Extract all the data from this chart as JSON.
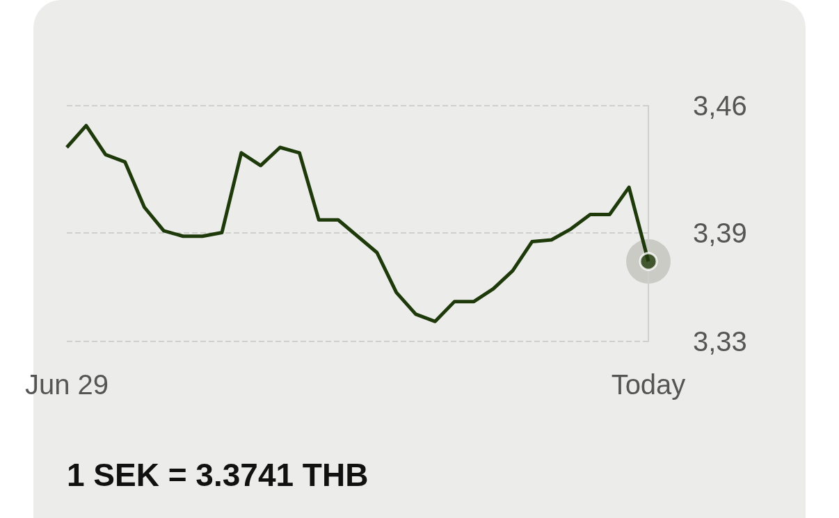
{
  "chart_data": {
    "type": "line",
    "categories": [
      "Jun 29",
      null,
      null,
      null,
      null,
      null,
      null,
      null,
      null,
      null,
      null,
      null,
      null,
      null,
      null,
      null,
      null,
      null,
      null,
      null,
      null,
      null,
      null,
      null,
      null,
      null,
      null,
      null,
      null,
      null,
      "Today"
    ],
    "series": [
      {
        "color": "#1f3a0a",
        "marker": "none",
        "values": [
          3.437,
          3.449,
          3.433,
          3.429,
          3.404,
          3.391,
          3.388,
          3.388,
          3.39,
          3.434,
          3.427,
          3.437,
          3.434,
          3.397,
          3.397,
          3.388,
          3.379,
          3.357,
          3.345,
          3.341,
          3.352,
          3.352,
          3.359,
          3.369,
          3.385,
          3.386,
          3.392,
          3.4,
          3.4,
          3.415,
          3.3741
        ]
      },
      {
        "type": "scatter",
        "marker": "circle",
        "color": "#1f3a0a",
        "x": [
          "Today"
        ],
        "values": [
          3.3741
        ]
      }
    ],
    "ylim": [
      3.33,
      3.46
    ],
    "yticks": [
      {
        "value": 3.33,
        "label": "3,33"
      },
      {
        "value": 3.39,
        "label": "3,39"
      },
      {
        "value": 3.46,
        "label": "3,46"
      }
    ],
    "grid": "y",
    "line_style": "solid",
    "annotations": [
      "1 SEK = 3.3741 THB"
    ]
  }
}
